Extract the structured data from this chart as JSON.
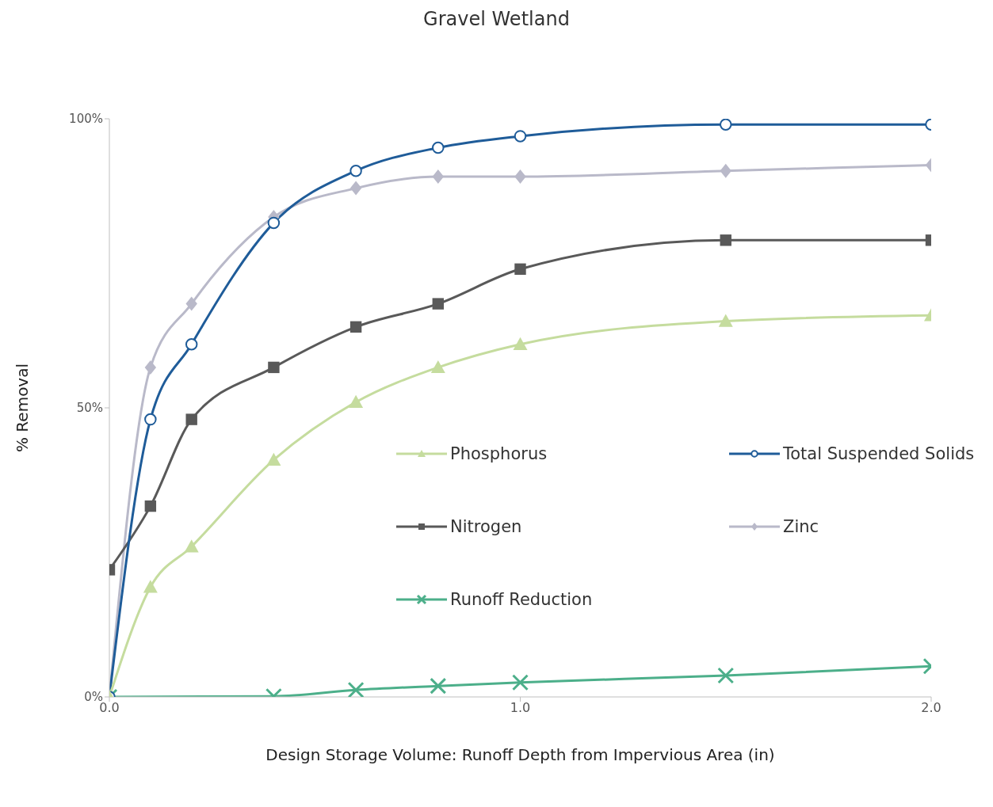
{
  "chart_data": {
    "type": "line",
    "title": "Gravel Wetland",
    "xlabel": "Design Storage Volume: Runoff Depth from Impervious Area (in)",
    "ylabel": "% Removal",
    "xlim": [
      0,
      2
    ],
    "xticks": [
      {
        "value": 0,
        "label": "0.0"
      },
      {
        "value": 1,
        "label": "1.0"
      },
      {
        "value": 2,
        "label": "2.0"
      }
    ],
    "ylim": [
      0,
      100
    ],
    "yticks": [
      {
        "value": 0,
        "label": "0%"
      },
      {
        "value": 50,
        "label": "50%"
      },
      {
        "value": 100,
        "label": "100%"
      }
    ],
    "grid": false,
    "legend": "right",
    "series": [
      {
        "name": "Phosphorus",
        "color": "#c5dc9e",
        "marker": "triangle",
        "x": [
          0,
          0.1,
          0.2,
          0.4,
          0.6,
          0.8,
          1.0,
          1.5,
          2.0
        ],
        "values": [
          0,
          19,
          26,
          41,
          51,
          57,
          61,
          65,
          66
        ]
      },
      {
        "name": "Total Suspended Solids",
        "color": "#1f5c99",
        "marker": "circle",
        "x": [
          0,
          0.1,
          0.2,
          0.4,
          0.6,
          0.8,
          1.0,
          1.5,
          2.0
        ],
        "values": [
          0,
          48,
          61,
          82,
          91,
          95,
          97,
          99,
          99
        ]
      },
      {
        "name": "Nitrogen",
        "color": "#595959",
        "marker": "square",
        "x": [
          0,
          0.1,
          0.2,
          0.4,
          0.6,
          0.8,
          1.0,
          1.5,
          2.0
        ],
        "values": [
          22,
          33,
          48,
          57,
          64,
          68,
          74,
          79,
          79
        ]
      },
      {
        "name": "Zinc",
        "color": "#b9b9c9",
        "marker": "diamond",
        "x": [
          0,
          0.1,
          0.2,
          0.4,
          0.6,
          0.8,
          1.0,
          1.5,
          2.0
        ],
        "values": [
          0,
          57,
          68,
          83,
          88,
          90,
          90,
          91,
          92
        ]
      },
      {
        "name": "Runoff Reduction",
        "color": "#4caf8a",
        "marker": "cross",
        "x": [
          0,
          0.4,
          0.6,
          0.8,
          1.0,
          1.5,
          2.0
        ],
        "values": [
          0,
          0.1,
          1.2,
          1.9,
          2.5,
          3.7,
          5.3
        ]
      }
    ]
  }
}
